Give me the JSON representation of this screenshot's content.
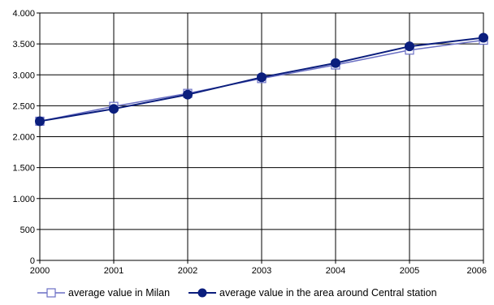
{
  "chart_data": {
    "type": "line",
    "x": [
      2000,
      2001,
      2002,
      2003,
      2004,
      2005,
      2006
    ],
    "x_tick_labels": [
      "2000",
      "2001",
      "2002",
      "2003",
      "2004",
      "2005",
      "2006"
    ],
    "y_tick_labels": [
      "0",
      "500",
      "1.000",
      "1.500",
      "2.000",
      "2.500",
      "3.000",
      "3.500",
      "4.000"
    ],
    "y_ticks": [
      0,
      500,
      1000,
      1500,
      2000,
      2500,
      3000,
      3500,
      4000
    ],
    "ylim": [
      0,
      4000
    ],
    "grid": true,
    "legend_position": "bottom",
    "series": [
      {
        "name": "average value in Milan",
        "values": [
          2250,
          2490,
          2700,
          2940,
          3160,
          3400,
          3560
        ],
        "color": "#6a6fc4",
        "marker": "open-square"
      },
      {
        "name": "average value in the area around Central station",
        "values": [
          2250,
          2450,
          2680,
          2960,
          3190,
          3460,
          3600
        ],
        "color": "#0b1e7d",
        "marker": "filled-circle"
      }
    ]
  }
}
